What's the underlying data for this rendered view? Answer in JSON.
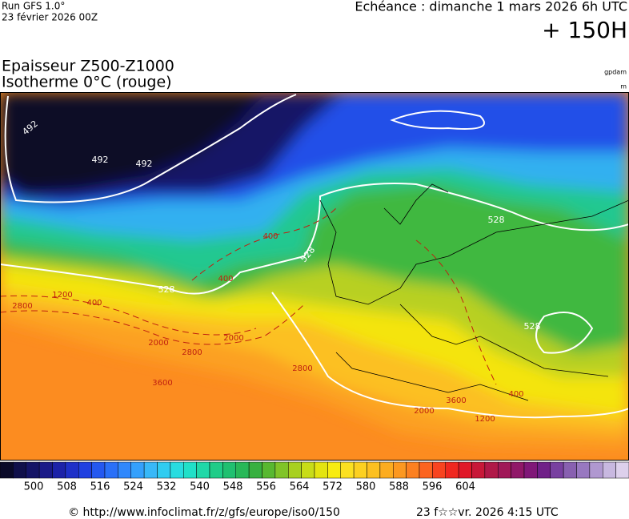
{
  "header": {
    "run": "Run GFS 1.0°",
    "run_date": "23 février 2026 00Z",
    "valid": "Echéance : dimanche 1 mars 2026 6h UTC",
    "lead": "+ 150H",
    "title_line1": "Epaisseur Z500-Z1000",
    "title_line2": "Isotherme 0°C (rouge)",
    "unit_top": "gpdam",
    "unit_bottom": "m"
  },
  "contour_labels": [
    "492",
    "492",
    "492",
    "528",
    "528",
    "528",
    "528",
    "400",
    "400",
    "400",
    "2000",
    "2800",
    "2000",
    "2800",
    "1200",
    "3600",
    "2800",
    "3600",
    "2000",
    "1200",
    "400"
  ],
  "colorbar": {
    "colors": [
      "#0a0a28",
      "#10104a",
      "#141466",
      "#1a1a88",
      "#1c22a8",
      "#1e30c8",
      "#2040e0",
      "#2458f0",
      "#2a70f8",
      "#3088fc",
      "#34a0fc",
      "#38b8f8",
      "#30ccf0",
      "#28dce0",
      "#20e0c8",
      "#20d8a8",
      "#20cc88",
      "#20c070",
      "#28b858",
      "#38b040",
      "#58b830",
      "#80c428",
      "#a8d020",
      "#c8dc18",
      "#e4e410",
      "#f8ec10",
      "#fce020",
      "#fcd020",
      "#fcc020",
      "#fcac20",
      "#fc9820",
      "#fc8020",
      "#fc6420",
      "#f84420",
      "#f02820",
      "#e01828",
      "#c81838",
      "#b01848",
      "#a01858",
      "#901868",
      "#801878",
      "#702088",
      "#7840a0",
      "#8860b0",
      "#9878c0",
      "#b098d0",
      "#c8b8e0",
      "#ddd0ec"
    ],
    "labels": [
      "500",
      "508",
      "516",
      "524",
      "532",
      "540",
      "548",
      "556",
      "564",
      "572",
      "580",
      "588",
      "596",
      "604"
    ]
  },
  "footer": {
    "source": "© http://www.infoclimat.fr/z/gfs/europe/iso0/150",
    "generated": "23 f☆☆vr. 2026  4:15 UTC"
  }
}
